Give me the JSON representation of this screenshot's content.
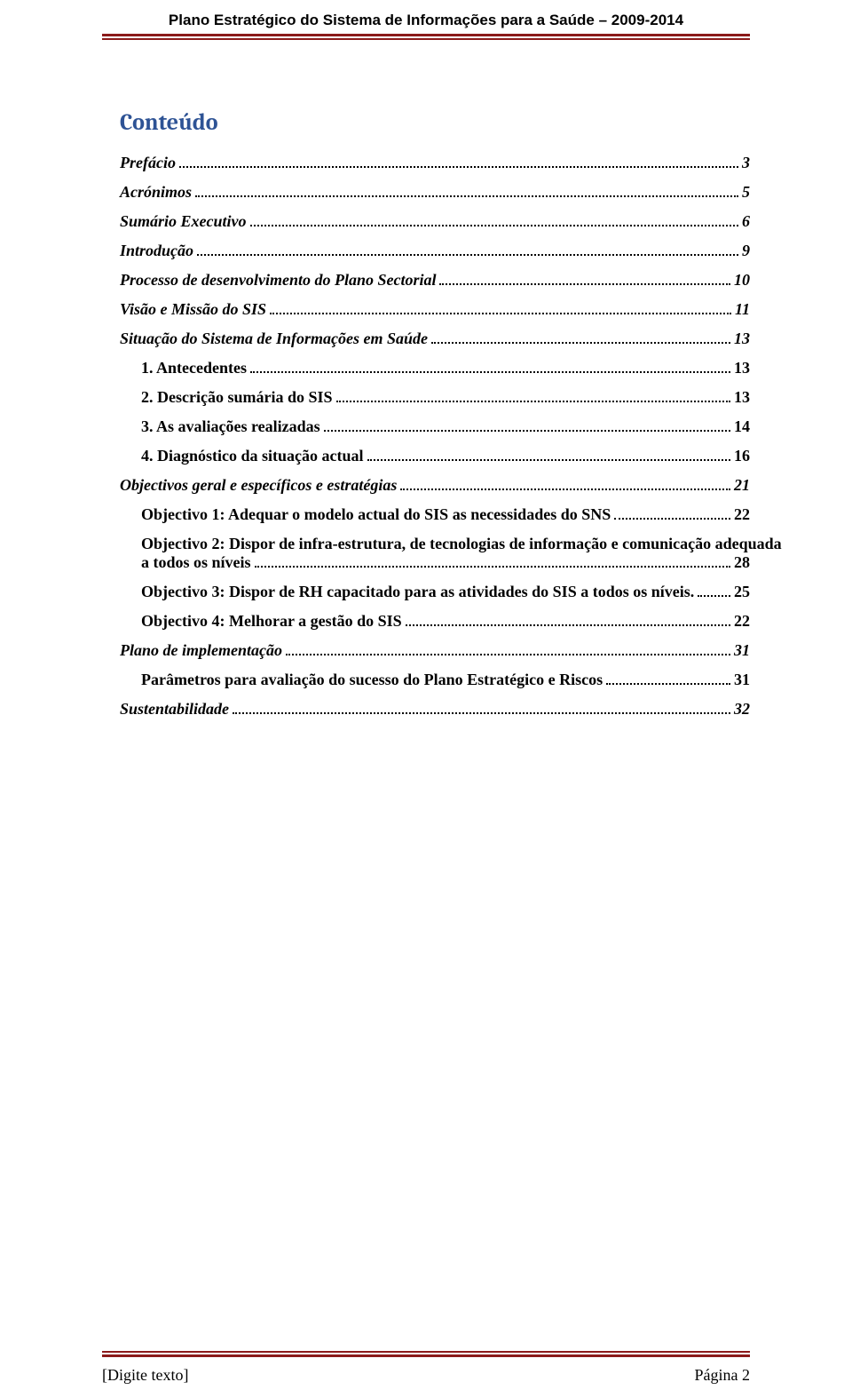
{
  "header": {
    "title": "Plano Estratégico do Sistema de Informações para a Saúde – 2009-2014"
  },
  "toc": {
    "title": "Conteúdo",
    "entries": [
      {
        "label": "Prefácio",
        "page": "3",
        "style": "italic",
        "indent": 0
      },
      {
        "label": "Acrónimos",
        "page": "5",
        "style": "italic",
        "indent": 0
      },
      {
        "label": "Sumário Executivo",
        "page": "6",
        "style": "italic",
        "indent": 0
      },
      {
        "label": "Introdução",
        "page": "9",
        "style": "italic",
        "indent": 0
      },
      {
        "label": "Processo de desenvolvimento do Plano Sectorial",
        "page": "10",
        "style": "italic",
        "indent": 0
      },
      {
        "label": "Visão e Missão do SIS",
        "page": "11",
        "style": "italic",
        "indent": 0
      },
      {
        "label": "Situação do Sistema de Informações em Saúde",
        "page": "13",
        "style": "italic",
        "indent": 0
      },
      {
        "label": "1.    Antecedentes",
        "page": "13",
        "style": "bold",
        "indent": 1
      },
      {
        "label": "2.    Descrição sumária do SIS",
        "page": "13",
        "style": "bold",
        "indent": 1
      },
      {
        "label": "3.    As avaliações realizadas",
        "page": "14",
        "style": "bold",
        "indent": 1
      },
      {
        "label": "4.    Diagnóstico da situação actual",
        "page": "16",
        "style": "bold",
        "indent": 1
      },
      {
        "label": "Objectivos geral e específicos e estratégias",
        "page": "21",
        "style": "italic",
        "indent": 0
      },
      {
        "label": "Objectivo 1: Adequar o modelo actual do SIS as necessidades do SNS",
        "page": "22",
        "style": "bold",
        "indent": 2
      },
      {
        "label_multiline": true,
        "line1": "Objectivo 2: Dispor de infra-estrutura, de tecnologias de informação e comunicação adequada",
        "line2_label": "a todos os níveis",
        "page": "28",
        "style": "bold",
        "indent": 2
      },
      {
        "label": "Objectivo 3: Dispor de RH capacitado para as atividades do SIS a todos os níveis. ",
        "page": "25",
        "style": "bold",
        "indent": 2
      },
      {
        "label": "Objectivo 4: Melhorar a gestão do SIS",
        "page": "22",
        "style": "bold",
        "indent": 2
      },
      {
        "label": "Plano de implementação",
        "page": "31",
        "style": "italic",
        "indent": 0
      },
      {
        "label": "Parâmetros para avaliação do sucesso do Plano Estratégico e Riscos",
        "page": "31",
        "style": "bold",
        "indent": 2
      },
      {
        "label": "Sustentabilidade",
        "page": "32",
        "style": "italic",
        "indent": 0
      }
    ]
  },
  "footer": {
    "left": "[Digite texto]",
    "right": "Página 2"
  },
  "colors": {
    "rule_color": "#8b1a1a",
    "title_color": "#2e5395",
    "text_color": "#000000",
    "background_color": "#ffffff"
  },
  "typography": {
    "body_font": "Times New Roman",
    "header_font": "Arial",
    "toc_title_font": "Cambria",
    "toc_title_fontsize": 26,
    "toc_entry_fontsize": 18,
    "header_fontsize": 17,
    "footer_fontsize": 18
  }
}
